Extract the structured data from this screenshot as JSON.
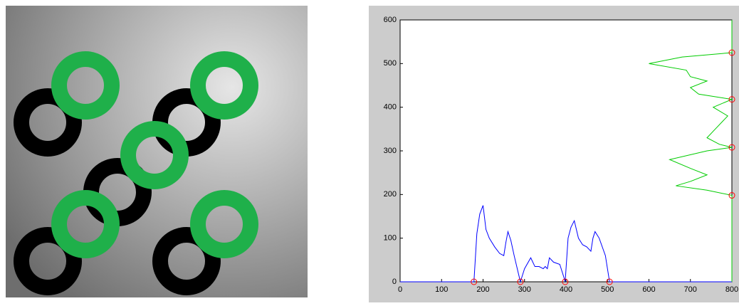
{
  "chart_data": {
    "type": "line",
    "xlim": [
      0,
      800
    ],
    "ylim": [
      0,
      600
    ],
    "xticks": [
      0,
      100,
      200,
      300,
      400,
      500,
      600,
      700,
      800
    ],
    "yticks": [
      0,
      100,
      200,
      300,
      400,
      500,
      600
    ],
    "series": [
      {
        "color": "#0000ff",
        "style": "line",
        "x": [
          0,
          178,
          185,
          192,
          200,
          207,
          215,
          228,
          240,
          250,
          255,
          260,
          267,
          275,
          285,
          290,
          300,
          315,
          325,
          335,
          345,
          350,
          355,
          360,
          370,
          385,
          395,
          398,
          405,
          412,
          420,
          430,
          440,
          450,
          460,
          465,
          470,
          480,
          495,
          505,
          800
        ],
        "values": [
          0,
          0,
          110,
          155,
          175,
          120,
          100,
          80,
          65,
          60,
          90,
          115,
          95,
          60,
          20,
          0,
          30,
          55,
          35,
          35,
          30,
          35,
          30,
          55,
          45,
          40,
          10,
          0,
          100,
          125,
          140,
          100,
          85,
          80,
          70,
          100,
          115,
          100,
          60,
          0,
          0
        ]
      },
      {
        "color": "#00cc00",
        "style": "line",
        "x": [
          800,
          800,
          740,
          665,
          700,
          740,
          700,
          650,
          740,
          800,
          770,
          740,
          760,
          790,
          755,
          800,
          720,
          700,
          740,
          700,
          690,
          600,
          680,
          800,
          800
        ],
        "values": [
          0,
          198,
          210,
          220,
          230,
          245,
          260,
          280,
          300,
          308,
          315,
          330,
          350,
          380,
          400,
          418,
          430,
          445,
          460,
          470,
          485,
          500,
          515,
          525,
          600
        ]
      },
      {
        "color": "#ff0000",
        "style": "markers",
        "x": [
          178,
          290,
          398,
          505,
          800,
          800,
          800,
          800
        ],
        "values": [
          0,
          0,
          0,
          0,
          198,
          308,
          418,
          525
        ]
      }
    ]
  }
}
